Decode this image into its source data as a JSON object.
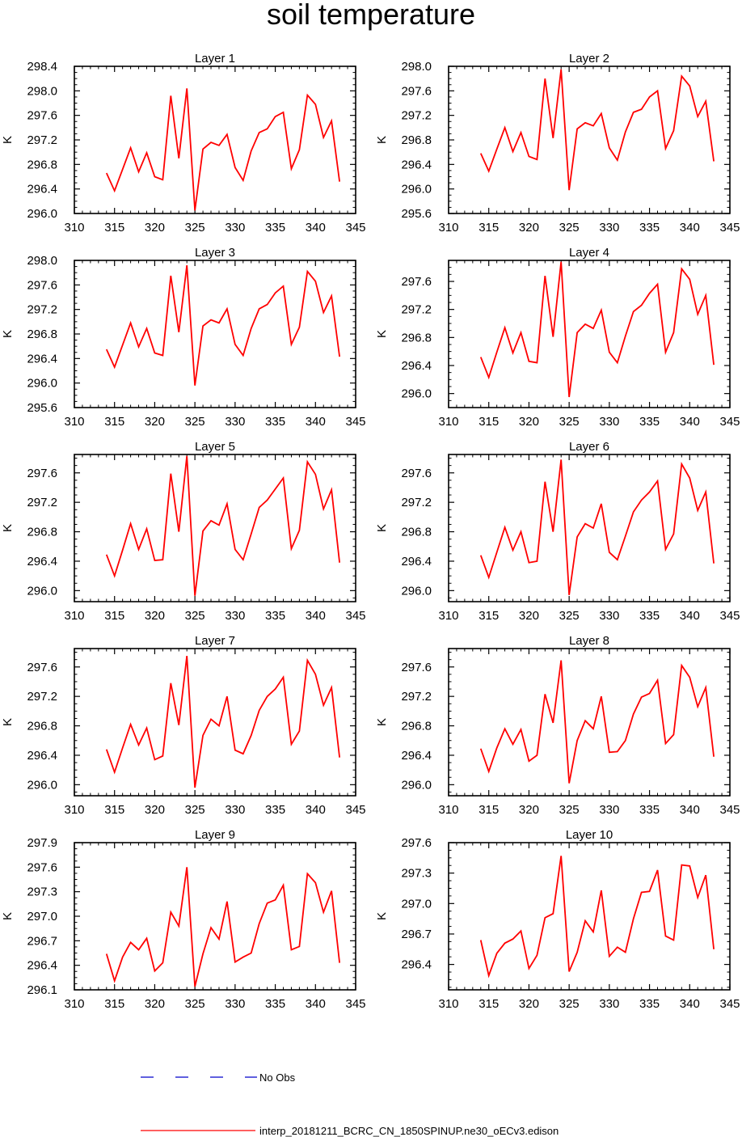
{
  "title": "soil temperature",
  "colors": {
    "model": "#ff0000",
    "obs": "#0000cc"
  },
  "legend": {
    "obs_label": "No Obs",
    "model_label": "interp_20181211_BCRC_CN_1850SPINUP.ne30_oECv3.edison"
  },
  "chart_data": [
    {
      "type": "line",
      "title": "Layer 1",
      "ylabel": "K",
      "xlim": [
        310,
        345
      ],
      "xticks": [
        310,
        315,
        320,
        325,
        330,
        335,
        340,
        345
      ],
      "ylim": [
        296.0,
        298.4
      ],
      "yticks": [
        "296.0",
        "296.4",
        "296.8",
        "297.2",
        "297.6",
        "298.0",
        "298.4"
      ],
      "x": [
        314,
        315,
        316,
        317,
        318,
        319,
        320,
        321,
        322,
        323,
        324,
        325,
        326,
        327,
        328,
        329,
        330,
        331,
        332,
        333,
        334,
        335,
        336,
        337,
        338,
        339,
        340,
        341,
        342,
        343
      ],
      "series": [
        {
          "name": "interp_20181211_BCRC_CN_1850SPINUP.ne30_oECv3.edison",
          "values": [
            296.66,
            296.37,
            296.72,
            297.07,
            296.68,
            296.99,
            296.6,
            296.55,
            297.92,
            296.9,
            298.04,
            296.05,
            297.05,
            297.16,
            297.11,
            297.29,
            296.75,
            296.54,
            297.02,
            297.32,
            297.38,
            297.58,
            297.65,
            296.73,
            297.04,
            297.93,
            297.78,
            297.24,
            297.51,
            296.52
          ]
        }
      ]
    },
    {
      "type": "line",
      "title": "Layer 2",
      "ylabel": "K",
      "xlim": [
        310,
        345
      ],
      "xticks": [
        310,
        315,
        320,
        325,
        330,
        335,
        340,
        345
      ],
      "ylim": [
        295.6,
        298.0
      ],
      "yticks": [
        "295.6",
        "296.0",
        "296.4",
        "296.8",
        "297.2",
        "297.6",
        "298.0"
      ],
      "x": [
        314,
        315,
        316,
        317,
        318,
        319,
        320,
        321,
        322,
        323,
        324,
        325,
        326,
        327,
        328,
        329,
        330,
        331,
        332,
        333,
        334,
        335,
        336,
        337,
        338,
        339,
        340,
        341,
        342,
        343
      ],
      "series": [
        {
          "name": "interp_20181211_BCRC_CN_1850SPINUP.ne30_oECv3.edison",
          "values": [
            296.58,
            296.29,
            296.65,
            297.0,
            296.61,
            296.92,
            296.53,
            296.48,
            297.8,
            296.83,
            297.95,
            295.98,
            296.98,
            297.08,
            297.03,
            297.23,
            296.67,
            296.47,
            296.93,
            297.25,
            297.3,
            297.5,
            297.6,
            296.66,
            296.95,
            297.84,
            297.68,
            297.18,
            297.43,
            296.45
          ]
        }
      ]
    },
    {
      "type": "line",
      "title": "Layer 3",
      "ylabel": "K",
      "xlim": [
        310,
        345
      ],
      "xticks": [
        310,
        315,
        320,
        325,
        330,
        335,
        340,
        345
      ],
      "ylim": [
        295.6,
        298.0
      ],
      "yticks": [
        "295.6",
        "296.0",
        "296.4",
        "296.8",
        "297.2",
        "297.6",
        "298.0"
      ],
      "x": [
        314,
        315,
        316,
        317,
        318,
        319,
        320,
        321,
        322,
        323,
        324,
        325,
        326,
        327,
        328,
        329,
        330,
        331,
        332,
        333,
        334,
        335,
        336,
        337,
        338,
        339,
        340,
        341,
        342,
        343
      ],
      "series": [
        {
          "name": "interp_20181211_BCRC_CN_1850SPINUP.ne30_oECv3.edison",
          "values": [
            296.55,
            296.26,
            296.62,
            296.98,
            296.59,
            296.89,
            296.49,
            296.45,
            297.75,
            296.83,
            297.92,
            295.96,
            296.93,
            297.03,
            296.98,
            297.21,
            296.63,
            296.45,
            296.89,
            297.21,
            297.28,
            297.47,
            297.58,
            296.63,
            296.91,
            297.82,
            297.66,
            297.15,
            297.42,
            296.43
          ]
        }
      ]
    },
    {
      "type": "line",
      "title": "Layer 4",
      "ylabel": "K",
      "xlim": [
        310,
        345
      ],
      "xticks": [
        310,
        315,
        320,
        325,
        330,
        335,
        340,
        345
      ],
      "ylim": [
        295.8,
        297.9
      ],
      "yticks": [
        "296.0",
        "296.4",
        "296.8",
        "297.2",
        "297.6"
      ],
      "x": [
        314,
        315,
        316,
        317,
        318,
        319,
        320,
        321,
        322,
        323,
        324,
        325,
        326,
        327,
        328,
        329,
        330,
        331,
        332,
        333,
        334,
        335,
        336,
        337,
        338,
        339,
        340,
        341,
        342,
        343
      ],
      "series": [
        {
          "name": "interp_20181211_BCRC_CN_1850SPINUP.ne30_oECv3.edison",
          "values": [
            296.52,
            296.23,
            296.59,
            296.94,
            296.58,
            296.87,
            296.46,
            296.44,
            297.68,
            296.81,
            297.88,
            295.95,
            296.87,
            296.99,
            296.93,
            297.19,
            296.59,
            296.44,
            296.82,
            297.17,
            297.26,
            297.43,
            297.56,
            296.59,
            296.87,
            297.78,
            297.63,
            297.13,
            297.4,
            296.41
          ]
        }
      ]
    },
    {
      "type": "line",
      "title": "Layer 5",
      "ylabel": "K",
      "xlim": [
        310,
        345
      ],
      "xticks": [
        310,
        315,
        320,
        325,
        330,
        335,
        340,
        345
      ],
      "ylim": [
        295.85,
        297.85
      ],
      "yticks": [
        "296.0",
        "296.4",
        "296.8",
        "297.2",
        "297.6"
      ],
      "x": [
        314,
        315,
        316,
        317,
        318,
        319,
        320,
        321,
        322,
        323,
        324,
        325,
        326,
        327,
        328,
        329,
        330,
        331,
        332,
        333,
        334,
        335,
        336,
        337,
        338,
        339,
        340,
        341,
        342,
        343
      ],
      "series": [
        {
          "name": "interp_20181211_BCRC_CN_1850SPINUP.ne30_oECv3.edison",
          "values": [
            296.49,
            296.2,
            296.55,
            296.91,
            296.56,
            296.84,
            296.41,
            296.42,
            297.59,
            296.8,
            297.83,
            295.93,
            296.81,
            296.95,
            296.89,
            297.18,
            296.56,
            296.42,
            296.77,
            297.13,
            297.23,
            297.38,
            297.53,
            296.57,
            296.82,
            297.75,
            297.58,
            297.11,
            297.37,
            296.38
          ]
        }
      ]
    },
    {
      "type": "line",
      "title": "Layer 6",
      "ylabel": "K",
      "xlim": [
        310,
        345
      ],
      "xticks": [
        310,
        315,
        320,
        325,
        330,
        335,
        340,
        345
      ],
      "ylim": [
        295.85,
        297.85
      ],
      "yticks": [
        "296.0",
        "296.4",
        "296.8",
        "297.2",
        "297.6"
      ],
      "x": [
        314,
        315,
        316,
        317,
        318,
        319,
        320,
        321,
        322,
        323,
        324,
        325,
        326,
        327,
        328,
        329,
        330,
        331,
        332,
        333,
        334,
        335,
        336,
        337,
        338,
        339,
        340,
        341,
        342,
        343
      ],
      "series": [
        {
          "name": "interp_20181211_BCRC_CN_1850SPINUP.ne30_oECv3.edison",
          "values": [
            296.48,
            296.18,
            296.52,
            296.86,
            296.55,
            296.8,
            296.38,
            296.4,
            297.48,
            296.8,
            297.78,
            295.94,
            296.73,
            296.91,
            296.85,
            297.18,
            296.52,
            296.42,
            296.74,
            297.07,
            297.23,
            297.34,
            297.49,
            296.56,
            296.77,
            297.72,
            297.53,
            297.09,
            297.34,
            296.37
          ]
        }
      ]
    },
    {
      "type": "line",
      "title": "Layer 7",
      "ylabel": "K",
      "xlim": [
        310,
        345
      ],
      "xticks": [
        310,
        315,
        320,
        325,
        330,
        335,
        340,
        345
      ],
      "ylim": [
        295.85,
        297.85
      ],
      "yticks": [
        "296.0",
        "296.4",
        "296.8",
        "297.2",
        "297.6"
      ],
      "x": [
        314,
        315,
        316,
        317,
        318,
        319,
        320,
        321,
        322,
        323,
        324,
        325,
        326,
        327,
        328,
        329,
        330,
        331,
        332,
        333,
        334,
        335,
        336,
        337,
        338,
        339,
        340,
        341,
        342,
        343
      ],
      "series": [
        {
          "name": "interp_20181211_BCRC_CN_1850SPINUP.ne30_oECv3.edison",
          "values": [
            296.48,
            296.17,
            296.5,
            296.82,
            296.54,
            296.77,
            296.34,
            296.39,
            297.38,
            296.81,
            297.75,
            295.96,
            296.67,
            296.89,
            296.8,
            297.2,
            296.47,
            296.42,
            296.67,
            297.01,
            297.2,
            297.3,
            297.46,
            296.55,
            296.73,
            297.69,
            297.5,
            297.08,
            297.32,
            296.37
          ]
        }
      ]
    },
    {
      "type": "line",
      "title": "Layer 8",
      "ylabel": "K",
      "xlim": [
        310,
        345
      ],
      "xticks": [
        310,
        315,
        320,
        325,
        330,
        335,
        340,
        345
      ],
      "ylim": [
        295.85,
        297.85
      ],
      "yticks": [
        "296.0",
        "296.4",
        "296.8",
        "297.2",
        "297.6"
      ],
      "x": [
        314,
        315,
        316,
        317,
        318,
        319,
        320,
        321,
        322,
        323,
        324,
        325,
        326,
        327,
        328,
        329,
        330,
        331,
        332,
        333,
        334,
        335,
        336,
        337,
        338,
        339,
        340,
        341,
        342,
        343
      ],
      "series": [
        {
          "name": "interp_20181211_BCRC_CN_1850SPINUP.ne30_oECv3.edison",
          "values": [
            296.49,
            296.18,
            296.5,
            296.76,
            296.55,
            296.75,
            296.32,
            296.4,
            297.23,
            296.84,
            297.69,
            296.02,
            296.6,
            296.87,
            296.76,
            297.2,
            296.44,
            296.45,
            296.6,
            296.96,
            297.19,
            297.24,
            297.42,
            296.56,
            296.68,
            297.62,
            297.46,
            297.06,
            297.32,
            296.38
          ]
        }
      ]
    },
    {
      "type": "line",
      "title": "Layer 9",
      "ylabel": "K",
      "xlim": [
        310,
        345
      ],
      "xticks": [
        310,
        315,
        320,
        325,
        330,
        335,
        340,
        345
      ],
      "ylim": [
        296.1,
        297.9
      ],
      "yticks": [
        "296.1",
        "296.4",
        "296.7",
        "297.0",
        "297.3",
        "297.6",
        "297.9"
      ],
      "x": [
        314,
        315,
        316,
        317,
        318,
        319,
        320,
        321,
        322,
        323,
        324,
        325,
        326,
        327,
        328,
        329,
        330,
        331,
        332,
        333,
        334,
        335,
        336,
        337,
        338,
        339,
        340,
        341,
        342,
        343
      ],
      "series": [
        {
          "name": "interp_20181211_BCRC_CN_1850SPINUP.ne30_oECv3.edison",
          "values": [
            296.54,
            296.21,
            296.5,
            296.68,
            296.59,
            296.73,
            296.33,
            296.43,
            297.05,
            296.88,
            297.6,
            296.14,
            296.54,
            296.86,
            296.72,
            297.18,
            296.44,
            296.5,
            296.55,
            296.91,
            297.16,
            297.2,
            297.38,
            296.59,
            296.63,
            297.52,
            297.41,
            297.05,
            297.31,
            296.43
          ]
        }
      ]
    },
    {
      "type": "line",
      "title": "Layer 10",
      "ylabel": "K",
      "xlim": [
        310,
        345
      ],
      "xticks": [
        310,
        315,
        320,
        325,
        330,
        335,
        340,
        345
      ],
      "ylim": [
        296.15,
        297.6
      ],
      "yticks": [
        "296.4",
        "296.7",
        "297.0",
        "297.3",
        "297.6"
      ],
      "x": [
        314,
        315,
        316,
        317,
        318,
        319,
        320,
        321,
        322,
        323,
        324,
        325,
        326,
        327,
        328,
        329,
        330,
        331,
        332,
        333,
        334,
        335,
        336,
        337,
        338,
        339,
        340,
        341,
        342,
        343
      ],
      "series": [
        {
          "name": "interp_20181211_BCRC_CN_1850SPINUP.ne30_oECv3.edison",
          "values": [
            296.64,
            296.29,
            296.51,
            296.61,
            296.65,
            296.73,
            296.36,
            296.49,
            296.86,
            296.9,
            297.47,
            296.33,
            296.52,
            296.83,
            296.72,
            297.13,
            296.48,
            296.57,
            296.52,
            296.85,
            297.11,
            297.12,
            297.33,
            296.68,
            296.64,
            297.38,
            297.37,
            297.06,
            297.28,
            296.55
          ]
        }
      ]
    }
  ]
}
